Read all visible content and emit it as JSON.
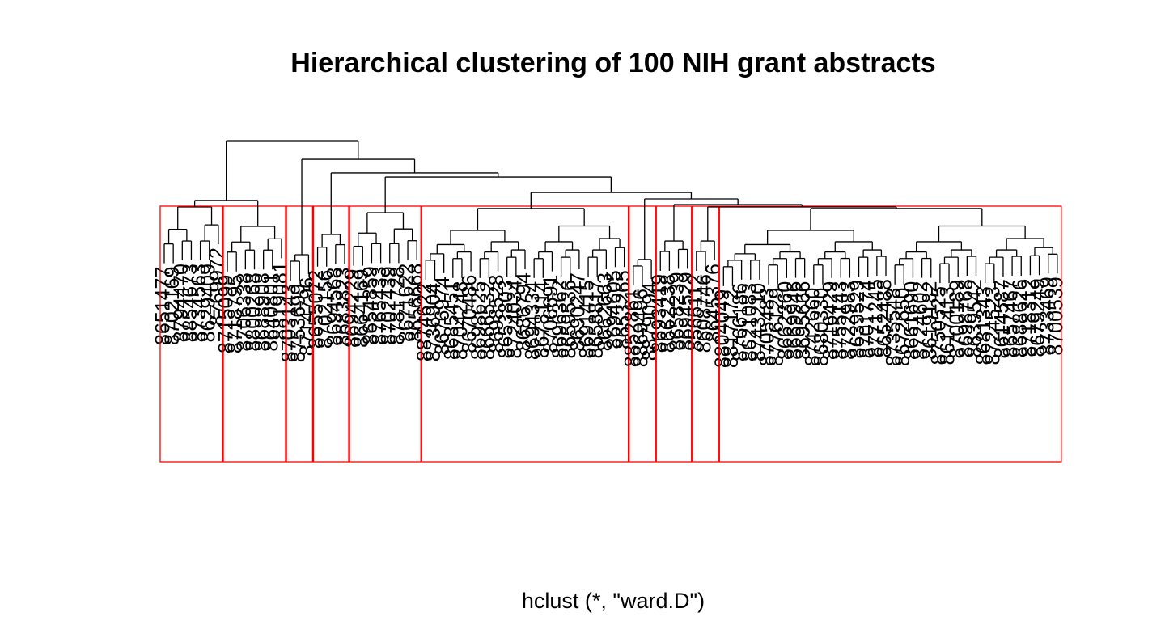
{
  "chart_data": {
    "type": "dendrogram",
    "title": "Hierarchical clustering of 100 NIH grant abstracts",
    "xlabel": "hclust (*, \"ward.D\")",
    "color": "#000000",
    "box_color": "#ff0000",
    "ylim": [
      0,
      100
    ],
    "clusters": [
      {
        "height": 53.4,
        "leaves": [
          "8651477",
          "8702169",
          "8794470",
          "8854673",
          "8734563",
          "8629409",
          "8769972"
        ]
      },
      {
        "height": 39.8,
        "leaves": [
          "8715099",
          "8718795",
          "8706338",
          "8800268",
          "8688908",
          "8640801",
          "8819081"
        ]
      },
      {
        "height": 19.9,
        "leaves": [
          "8703143",
          "8753699",
          "8714796"
        ]
      },
      {
        "height": 34.1,
        "leaves": [
          "8655072",
          "8702156",
          "8694568",
          "8683823"
        ]
      },
      {
        "height": 49.4,
        "leaves": [
          "8694229",
          "8664169",
          "8654859",
          "8765433",
          "8702439",
          "8781728",
          "8671622",
          "8656668"
        ]
      },
      {
        "height": 52.3,
        "leaves": [
          "8874622",
          "8736904",
          "8676974",
          "8685451",
          "8704248",
          "8670486",
          "8698625",
          "8666532",
          "8698528",
          "8653803",
          "8724034",
          "8686794",
          "8694334",
          "8678114",
          "8706691",
          "8696362",
          "8659536",
          "8690247",
          "8691415",
          "8658817",
          "8662663",
          "8694605",
          "8653265"
        ]
      },
      {
        "height": 16.5,
        "leaves": [
          "8852861",
          "8869496",
          "8879094"
        ]
      },
      {
        "height": 29.5,
        "leaves": [
          "8693419",
          "8662238",
          "8658239",
          "8694529"
        ]
      },
      {
        "height": 29.5,
        "leaves": [
          "8566112",
          "8608746",
          "8645376"
        ]
      },
      {
        "height": 52.3,
        "leaves": [
          "8804049",
          "8817172",
          "8766186",
          "8621083",
          "8743210",
          "8705483",
          "8776129",
          "8662360",
          "8669946",
          "8695666",
          "8742660",
          "8680330",
          "8716429",
          "8755143",
          "8722983",
          "8639529",
          "8701774",
          "8771245",
          "8652488",
          "8735548",
          "8672650",
          "8661690",
          "8724602",
          "8619182",
          "8750525",
          "8617413",
          "8700189",
          "8698768",
          "8639542",
          "8681343",
          "8724523",
          "8614587",
          "8657467",
          "8688626",
          "8718312",
          "8679249",
          "8733469",
          "8700539"
        ]
      }
    ],
    "merges": [
      {
        "left": 0,
        "right": 1,
        "height": 58
      },
      {
        "left": 8,
        "right": 9,
        "height": 53.4
      },
      {
        "left": 7,
        "right": 11,
        "height": 55.1
      },
      {
        "left": 6,
        "right": 12,
        "height": 59.1
      },
      {
        "left": 5,
        "right": 13,
        "height": 63.6
      },
      {
        "left": 4,
        "right": 14,
        "height": 74.4
      },
      {
        "left": 3,
        "right": 15,
        "height": 77.3
      },
      {
        "left": 2,
        "right": 16,
        "height": 86.9
      },
      {
        "left": 10,
        "right": 17,
        "height": 100
      }
    ]
  }
}
